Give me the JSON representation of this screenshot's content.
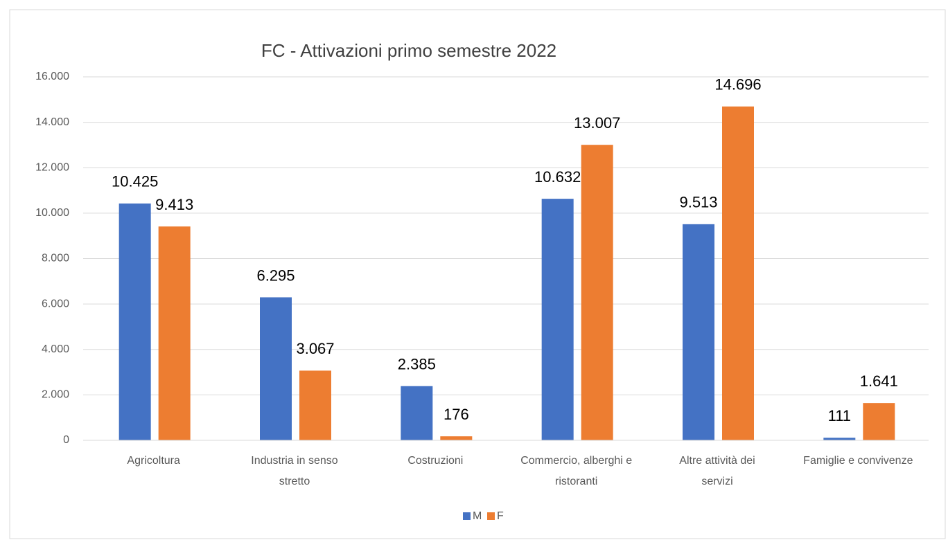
{
  "chart_data": {
    "type": "bar",
    "title": "FC - Attivazioni primo semestre 2022",
    "categories": [
      "Agricoltura",
      "Industria in senso stretto",
      "Costruzioni",
      "Commercio, alberghi e ristoranti",
      "Altre attività dei servizi",
      "Famiglie e convivenze"
    ],
    "series": [
      {
        "name": "M",
        "color": "#4472c4",
        "values": [
          10425,
          6295,
          2385,
          10632,
          9513,
          111
        ],
        "value_labels": [
          "10.425",
          "6.295",
          "2.385",
          "10.632",
          "9.513",
          "111"
        ]
      },
      {
        "name": "F",
        "color": "#ed7d31",
        "values": [
          9413,
          3067,
          176,
          13007,
          14696,
          1641
        ],
        "value_labels": [
          "9.413",
          "3.067",
          "176",
          "13.007",
          "14.696",
          "1.641"
        ]
      }
    ],
    "ylim": [
      0,
      16000
    ],
    "yticks": [
      0,
      {
        "value": 2000,
        "label": "2.000"
      },
      {
        "value": 4000,
        "label": "4.000"
      },
      {
        "value": 6000,
        "label": "6.000"
      },
      {
        "value": 8000,
        "label": "8.000"
      },
      {
        "value": 10000,
        "label": "10.000"
      },
      {
        "value": 12000,
        "label": "12.000"
      },
      {
        "value": 14000,
        "label": "14.000"
      },
      {
        "value": 16000,
        "label": "16.000"
      }
    ],
    "grid": true,
    "legend": "bottom"
  }
}
